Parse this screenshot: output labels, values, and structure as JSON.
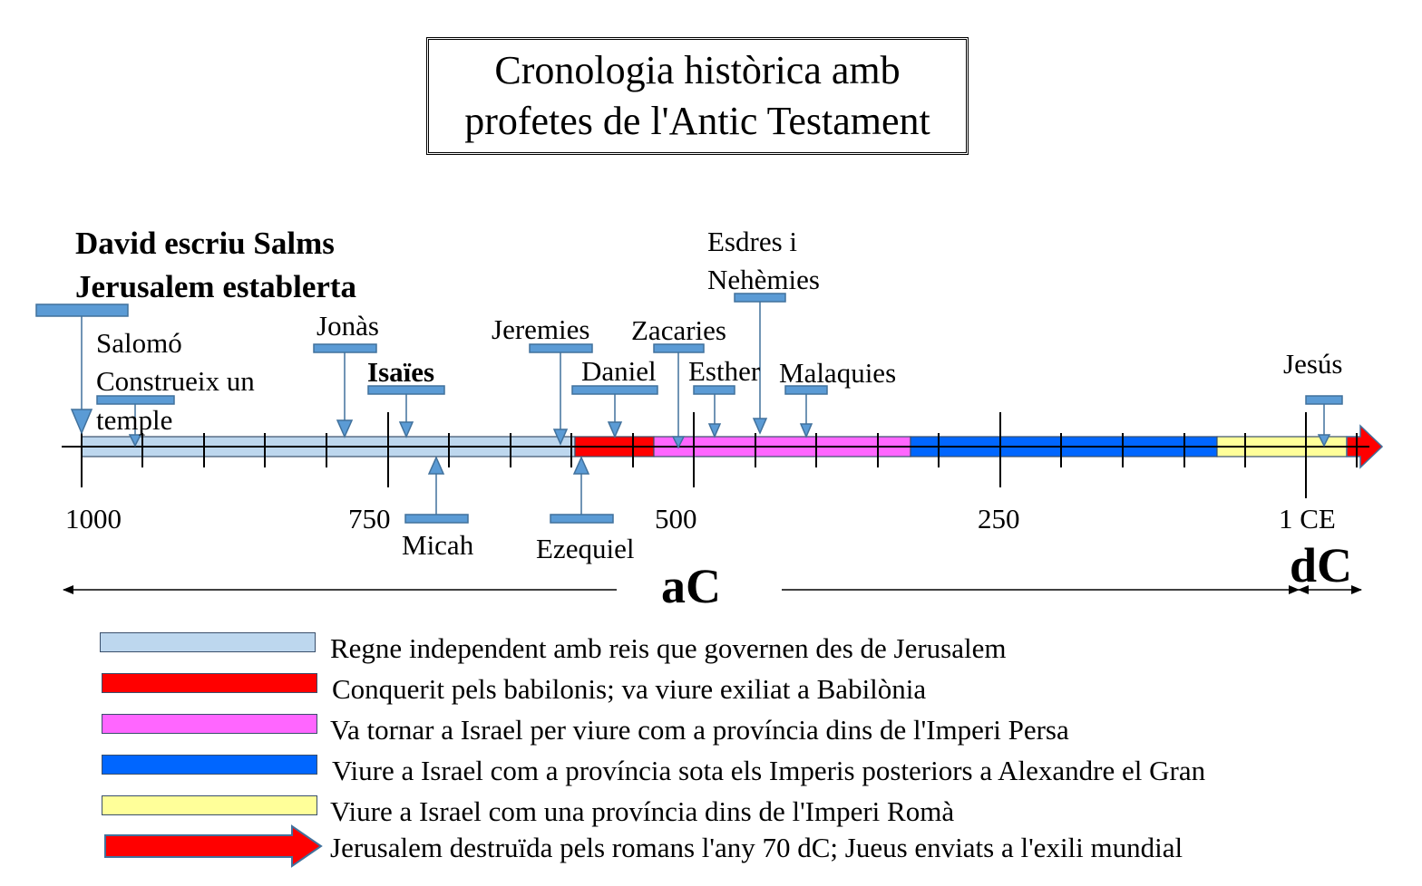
{
  "title": {
    "line1": "Cronologia històrica amb",
    "line2": "profetes de l'Antic Testament"
  },
  "events": {
    "david_line1": "David escriu Salms",
    "david_line2": "Jerusalem establerta",
    "salomo_line1": "Salomó",
    "salomo_line2": "Construeix un",
    "salomo_line3": "temple",
    "jonas": "Jonàs",
    "isaies": "Isaïes",
    "micah": "Micah",
    "jeremies": "Jeremies",
    "ezequiel": "Ezequiel",
    "daniel": "Daniel",
    "zacaries": "Zacaries",
    "esther": "Esther",
    "esdres_line1": "Esdres i",
    "esdres_line2": "Nehèmies",
    "malaquies": "Malaquies",
    "jesus": "Jesús"
  },
  "axis": {
    "tick_1000": "1000",
    "tick_750": "750",
    "tick_500": "500",
    "tick_250": "250",
    "tick_1ce": "1 CE",
    "era_bc": "aC",
    "era_ad": "dC"
  },
  "periods": [
    {
      "name": "Regne independent amb reis que governen des de Jerusalem",
      "color": "#bdd7ee"
    },
    {
      "name": "Conquerit pels babilonis; va viure exiliat a Babilònia",
      "color": "#ff0000"
    },
    {
      "name": "Va tornar a Israel per viure com a província dins de l'Imperi Persa",
      "color": "#ff66ff"
    },
    {
      "name": "Viure a Israel com a província sota els Imperis posteriors a Alexandre el Gran",
      "color": "#0066ff"
    },
    {
      "name": "Viure a Israel com una província dins de l'Imperi Romà",
      "color": "#ffff99"
    },
    {
      "name": "Jerusalem destruïda pels romans l'any 70 dC; Jueus enviats a l'exili mundial",
      "color": "#ff0000"
    }
  ],
  "colors": {
    "marker": "#5b9bd5",
    "marker_border": "#41719c"
  }
}
